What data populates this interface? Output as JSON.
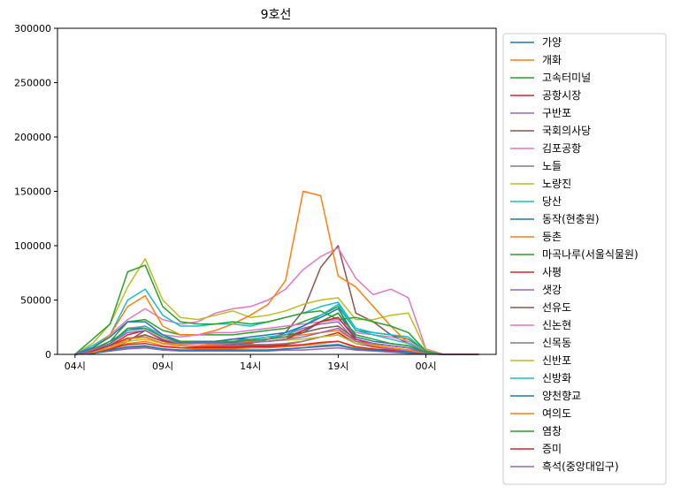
{
  "chart_data": {
    "type": "line",
    "title": "9호선",
    "xlabel": "",
    "ylabel": "",
    "x": [
      0,
      1,
      2,
      3,
      4,
      5,
      6,
      7,
      8,
      9,
      10,
      11,
      12,
      13,
      14,
      15,
      16,
      17,
      18,
      19,
      20,
      21,
      22,
      23
    ],
    "x_tick_positions": [
      0,
      5,
      10,
      15,
      20
    ],
    "x_tick_labels": [
      "04시",
      "09시",
      "14시",
      "19시",
      "00시"
    ],
    "xlim": [
      -1,
      24
    ],
    "ylim": [
      0,
      300000
    ],
    "yticks": [
      0,
      50000,
      100000,
      150000,
      200000,
      250000,
      300000
    ],
    "ytick_labels": [
      "0",
      "50000",
      "100000",
      "150000",
      "200000",
      "250000",
      "300000"
    ],
    "legend_position": "outside-right",
    "series": [
      {
        "name": "가양",
        "color": "#1f77b4",
        "values": [
          0,
          4000,
          12000,
          22000,
          24000,
          16000,
          11000,
          10000,
          10000,
          11000,
          12000,
          12000,
          14000,
          20000,
          30000,
          38000,
          14000,
          10000,
          8000,
          6000,
          2000,
          0,
          0,
          0
        ]
      },
      {
        "name": "개화",
        "color": "#ff7f0e",
        "values": [
          0,
          2000,
          6000,
          10000,
          12000,
          8000,
          6000,
          5000,
          5000,
          5000,
          6000,
          6000,
          7000,
          8000,
          10000,
          12000,
          6000,
          4000,
          3000,
          2000,
          1000,
          0,
          0,
          0
        ]
      },
      {
        "name": "고속터미널",
        "color": "#2ca02c",
        "values": [
          0,
          5000,
          12000,
          30000,
          32000,
          22000,
          18000,
          18000,
          18000,
          18000,
          20000,
          22000,
          24000,
          30000,
          36000,
          44000,
          22000,
          20000,
          18000,
          14000,
          3000,
          0,
          0,
          0
        ]
      },
      {
        "name": "공항시장",
        "color": "#d62728",
        "values": [
          0,
          3000,
          8000,
          15000,
          16000,
          10000,
          8000,
          7000,
          7000,
          7000,
          8000,
          8000,
          9000,
          12000,
          16000,
          20000,
          10000,
          7000,
          5000,
          4000,
          1000,
          0,
          0,
          0
        ]
      },
      {
        "name": "구반포",
        "color": "#9467bd",
        "values": [
          0,
          1000,
          3000,
          5000,
          6000,
          4000,
          3000,
          3000,
          3000,
          3000,
          3000,
          3000,
          4000,
          4000,
          5000,
          6000,
          4000,
          3000,
          2000,
          1000,
          500,
          0,
          0,
          0
        ]
      },
      {
        "name": "국회의사당",
        "color": "#8c564b",
        "values": [
          0,
          1000,
          4000,
          12000,
          22000,
          14000,
          8000,
          8000,
          8000,
          9000,
          10000,
          14000,
          20000,
          40000,
          80000,
          100000,
          38000,
          30000,
          18000,
          10000,
          2000,
          0,
          0,
          0
        ]
      },
      {
        "name": "김포공항",
        "color": "#e377c2",
        "values": [
          0,
          6000,
          18000,
          32000,
          42000,
          32000,
          28000,
          30000,
          38000,
          42000,
          44000,
          50000,
          60000,
          78000,
          90000,
          98000,
          70000,
          55000,
          60000,
          52000,
          5000,
          0,
          0,
          0
        ]
      },
      {
        "name": "노들",
        "color": "#7f7f7f",
        "values": [
          0,
          1000,
          3000,
          6000,
          7000,
          5000,
          4000,
          4000,
          4000,
          4000,
          4000,
          4000,
          5000,
          6000,
          7000,
          8000,
          5000,
          4000,
          3000,
          2000,
          500,
          0,
          0,
          0
        ]
      },
      {
        "name": "노량진",
        "color": "#bcbd22",
        "values": [
          0,
          10000,
          28000,
          62000,
          88000,
          50000,
          34000,
          32000,
          36000,
          40000,
          34000,
          36000,
          40000,
          46000,
          50000,
          52000,
          32000,
          32000,
          36000,
          38000,
          4000,
          0,
          0,
          0
        ]
      },
      {
        "name": "당산",
        "color": "#17becf",
        "values": [
          0,
          8000,
          18000,
          50000,
          60000,
          36000,
          26000,
          26000,
          28000,
          28000,
          26000,
          30000,
          34000,
          38000,
          44000,
          48000,
          24000,
          20000,
          18000,
          16000,
          3000,
          0,
          0,
          0
        ]
      },
      {
        "name": "동작(현충원)",
        "color": "#1f77b4",
        "values": [
          0,
          1000,
          4000,
          7000,
          8000,
          5000,
          4000,
          4000,
          4000,
          4000,
          4000,
          4000,
          5000,
          6000,
          8000,
          9000,
          5000,
          4000,
          3000,
          2000,
          500,
          0,
          0,
          0
        ]
      },
      {
        "name": "등촌",
        "color": "#ff7f0e",
        "values": [
          0,
          6000,
          18000,
          44000,
          54000,
          26000,
          18000,
          18000,
          22000,
          28000,
          36000,
          46000,
          68000,
          150000,
          146000,
          72000,
          62000,
          44000,
          26000,
          10000,
          3000,
          0,
          0,
          0
        ]
      },
      {
        "name": "마곡나루(서울식물원)",
        "color": "#2ca02c",
        "values": [
          0,
          14000,
          28000,
          76000,
          82000,
          44000,
          30000,
          28000,
          28000,
          30000,
          28000,
          30000,
          34000,
          38000,
          40000,
          32000,
          34000,
          30000,
          26000,
          20000,
          3000,
          0,
          0,
          0
        ]
      },
      {
        "name": "사평",
        "color": "#d62728",
        "values": [
          0,
          2000,
          5000,
          9000,
          10000,
          7000,
          6000,
          6000,
          6000,
          6000,
          7000,
          7000,
          8000,
          9000,
          11000,
          12000,
          7000,
          5000,
          4000,
          3000,
          1000,
          0,
          0,
          0
        ]
      },
      {
        "name": "샛강",
        "color": "#9467bd",
        "values": [
          0,
          2000,
          6000,
          14000,
          18000,
          12000,
          8000,
          8000,
          9000,
          10000,
          11000,
          14000,
          18000,
          24000,
          28000,
          30000,
          12000,
          8000,
          5000,
          3000,
          1000,
          0,
          0,
          0
        ]
      },
      {
        "name": "선유도",
        "color": "#8c564b",
        "values": [
          0,
          2000,
          6000,
          14000,
          18000,
          12000,
          10000,
          10000,
          12000,
          14000,
          14000,
          16000,
          18000,
          20000,
          24000,
          26000,
          14000,
          10000,
          8000,
          6000,
          1000,
          0,
          0,
          0
        ]
      },
      {
        "name": "신논현",
        "color": "#e377c2",
        "values": [
          0,
          4000,
          10000,
          24000,
          26000,
          18000,
          16000,
          18000,
          20000,
          20000,
          22000,
          24000,
          26000,
          28000,
          30000,
          32000,
          20000,
          18000,
          16000,
          12000,
          2000,
          0,
          0,
          0
        ]
      },
      {
        "name": "신목동",
        "color": "#7f7f7f",
        "values": [
          0,
          2000,
          6000,
          14000,
          16000,
          10000,
          8000,
          8000,
          8000,
          8000,
          9000,
          9000,
          10000,
          12000,
          16000,
          18000,
          10000,
          8000,
          6000,
          4000,
          1000,
          0,
          0,
          0
        ]
      },
      {
        "name": "신반포",
        "color": "#bcbd22",
        "values": [
          0,
          2000,
          6000,
          12000,
          14000,
          10000,
          9000,
          10000,
          10000,
          10000,
          11000,
          12000,
          13000,
          14000,
          16000,
          18000,
          10000,
          9000,
          8000,
          6000,
          1000,
          0,
          0,
          0
        ]
      },
      {
        "name": "신방화",
        "color": "#17becf",
        "values": [
          0,
          3000,
          9000,
          22000,
          26000,
          16000,
          12000,
          12000,
          12000,
          12000,
          14000,
          16000,
          18000,
          26000,
          36000,
          46000,
          22000,
          18000,
          14000,
          10000,
          2000,
          0,
          0,
          0
        ]
      },
      {
        "name": "양천향교",
        "color": "#1f77b4",
        "values": [
          0,
          6000,
          16000,
          30000,
          30000,
          18000,
          12000,
          12000,
          12000,
          14000,
          16000,
          18000,
          20000,
          26000,
          34000,
          42000,
          16000,
          12000,
          10000,
          8000,
          2000,
          0,
          0,
          0
        ]
      },
      {
        "name": "여의도",
        "color": "#ff7f0e",
        "values": [
          0,
          2000,
          6000,
          14000,
          16000,
          10000,
          8000,
          8000,
          9000,
          10000,
          12000,
          14000,
          16000,
          18000,
          20000,
          22000,
          12000,
          8000,
          6000,
          4000,
          1000,
          0,
          0,
          0
        ]
      },
      {
        "name": "염창",
        "color": "#2ca02c",
        "values": [
          0,
          3000,
          10000,
          24000,
          24000,
          16000,
          12000,
          11000,
          11000,
          12000,
          13000,
          14000,
          16000,
          22000,
          30000,
          38000,
          18000,
          14000,
          10000,
          8000,
          2000,
          0,
          0,
          0
        ]
      },
      {
        "name": "증미",
        "color": "#d62728",
        "values": [
          0,
          3000,
          8000,
          18000,
          22000,
          13000,
          10000,
          10000,
          10000,
          10000,
          11000,
          12000,
          14000,
          22000,
          30000,
          34000,
          14000,
          10000,
          8000,
          6000,
          1000,
          0,
          0,
          0
        ]
      },
      {
        "name": "흑석(중앙대입구)",
        "color": "#9467bd",
        "values": [
          0,
          4000,
          10000,
          20000,
          22000,
          14000,
          10000,
          10000,
          10000,
          10000,
          11000,
          12000,
          14000,
          16000,
          20000,
          24000,
          12000,
          10000,
          8000,
          6000,
          1000,
          0,
          0,
          0
        ]
      }
    ]
  }
}
